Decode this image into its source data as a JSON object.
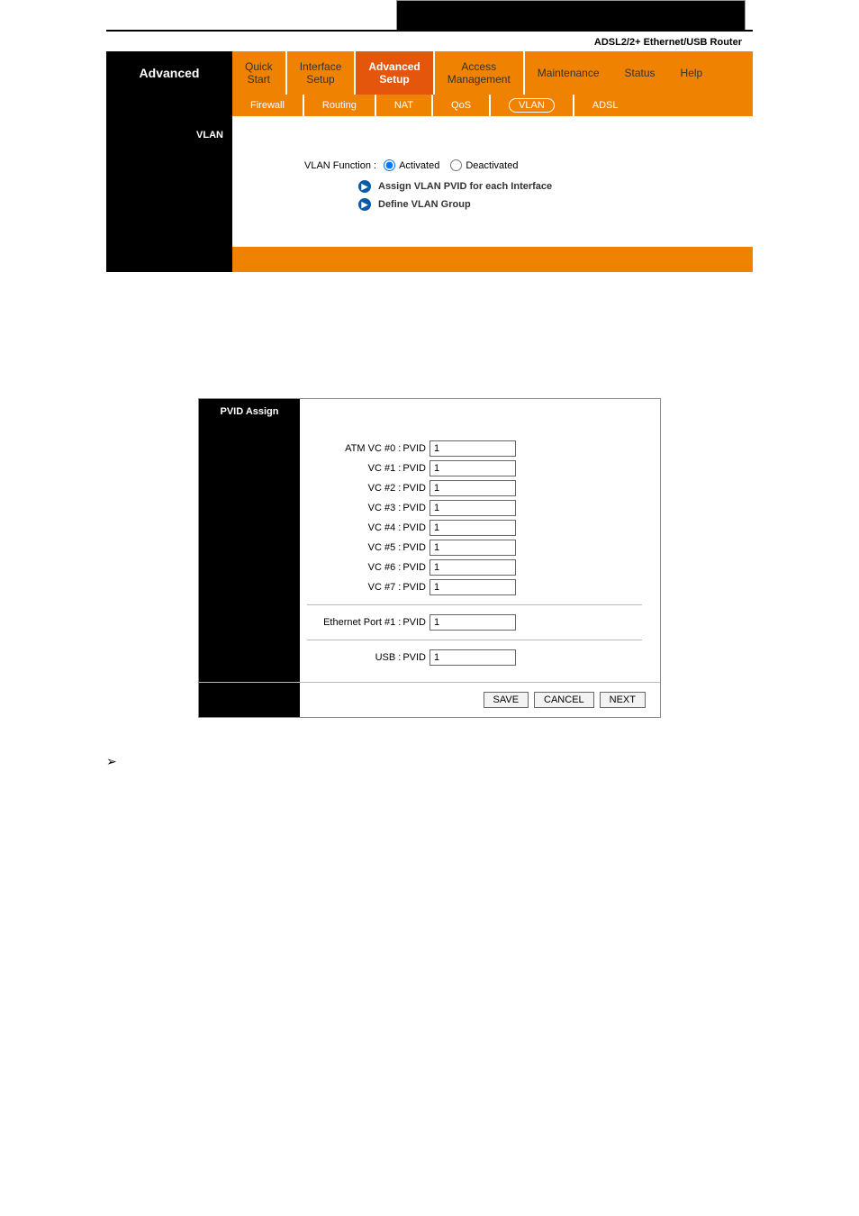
{
  "header": {
    "router_label": "ADSL2/2+ Ethernet/USB Router"
  },
  "nav": {
    "title": "Advanced",
    "tabs": [
      {
        "l1": "Quick",
        "l2": "Start"
      },
      {
        "l1": "Interface",
        "l2": "Setup"
      },
      {
        "l1": "Advanced",
        "l2": "Setup"
      },
      {
        "l1": "Access",
        "l2": "Management"
      },
      {
        "l1": "Maintenance",
        "l2": ""
      },
      {
        "l1": "Status",
        "l2": ""
      },
      {
        "l1": "Help",
        "l2": ""
      }
    ],
    "subtabs": [
      "Firewall",
      "Routing",
      "NAT",
      "QoS",
      "VLAN",
      "ADSL"
    ]
  },
  "vlan": {
    "section": "VLAN",
    "func_label": "VLAN Function :",
    "opt_activated": "Activated",
    "opt_deactivated": "Deactivated",
    "link_pvid": "Assign VLAN PVID for each Interface",
    "link_group": "Define VLAN Group"
  },
  "pvid": {
    "title": "PVID Assign",
    "pv_label": "PVID",
    "rows": [
      {
        "label": "ATM VC #0 :",
        "value": "1"
      },
      {
        "label": "VC #1 :",
        "value": "1"
      },
      {
        "label": "VC #2 :",
        "value": "1"
      },
      {
        "label": "VC #3 :",
        "value": "1"
      },
      {
        "label": "VC #4 :",
        "value": "1"
      },
      {
        "label": "VC #5 :",
        "value": "1"
      },
      {
        "label": "VC #6 :",
        "value": "1"
      },
      {
        "label": "VC #7 :",
        "value": "1"
      }
    ],
    "eth": {
      "label": "Ethernet Port #1 :",
      "value": "1"
    },
    "usb": {
      "label": "USB :",
      "value": "1"
    },
    "btn_save": "SAVE",
    "btn_cancel": "CANCEL",
    "btn_next": "NEXT"
  },
  "colors": {
    "orange": "#ef8200",
    "dkorange": "#e3560b",
    "black": "#000000",
    "bullet": "#0a5aa6"
  }
}
